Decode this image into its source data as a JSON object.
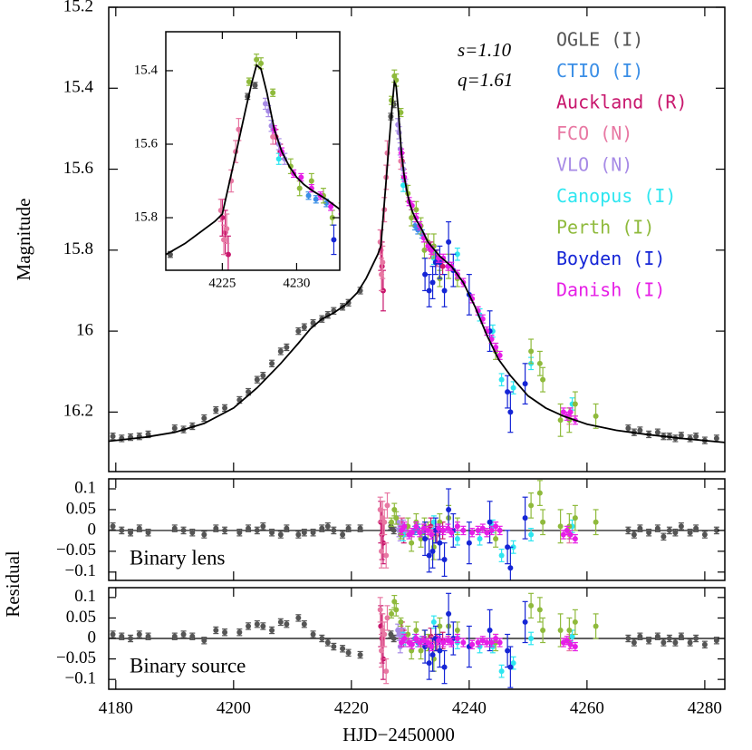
{
  "chart_data": [
    {
      "type": "scatter",
      "ylabel": "Magnitude",
      "xlim": [
        4178.8,
        4283.4
      ],
      "ylim": [
        15.2,
        16.347
      ],
      "y_inverted": true,
      "xticks": [
        4180,
        4200,
        4220,
        4240,
        4260,
        4280
      ],
      "yticks": [
        15.2,
        15.4,
        15.6,
        15.8,
        16,
        16.2
      ],
      "annotations": [
        "s=1.10",
        "q=1.61"
      ],
      "series": [
        {
          "name": "OGLE (I)",
          "color": "#555555",
          "x": [
            4179.5,
            4181,
            4182.5,
            4184,
            4185.5,
            4190,
            4191.5,
            4193,
            4195,
            4197,
            4198.5,
            4201,
            4202.5,
            4204,
            4205,
            4206.5,
            4208,
            4209,
            4211,
            4212,
            4213.5,
            4215,
            4216,
            4217,
            4218.5,
            4219.5,
            4221.5,
            4226.7,
            4227.2,
            4267,
            4268,
            4269,
            4270.5,
            4272,
            4273,
            4274,
            4275,
            4276,
            4277.5,
            4278.5,
            4280,
            4282
          ],
          "values": [
            16.26,
            16.265,
            16.262,
            16.26,
            16.255,
            16.24,
            16.243,
            16.235,
            16.215,
            16.195,
            16.19,
            16.17,
            16.15,
            16.12,
            16.11,
            16.08,
            16.05,
            16.04,
            16.0,
            15.99,
            15.98,
            15.97,
            15.96,
            15.95,
            15.94,
            15.93,
            15.9,
            15.47,
            15.44,
            16.24,
            16.25,
            16.245,
            16.255,
            16.25,
            16.26,
            16.26,
            16.265,
            16.258,
            16.265,
            16.26,
            16.27,
            16.265
          ],
          "errors": [
            0.008,
            0.008,
            0.008,
            0.008,
            0.008,
            0.008,
            0.008,
            0.008,
            0.008,
            0.008,
            0.008,
            0.008,
            0.008,
            0.008,
            0.008,
            0.008,
            0.008,
            0.008,
            0.008,
            0.008,
            0.008,
            0.008,
            0.008,
            0.008,
            0.008,
            0.008,
            0.008,
            0.008,
            0.008,
            0.008,
            0.008,
            0.008,
            0.008,
            0.008,
            0.008,
            0.008,
            0.008,
            0.008,
            0.008,
            0.008,
            0.008,
            0.008
          ]
        },
        {
          "name": "CTIO (I)",
          "color": "#3a8ee6",
          "x": [
            4230.8,
            4231.3,
            4232
          ],
          "values": [
            15.74,
            15.75,
            15.76
          ],
          "errors": [
            0.01,
            0.01,
            0.01
          ]
        },
        {
          "name": "Auckland (R)",
          "color": "#c8176d",
          "x": [
            4225.0,
            4225.2,
            4225.4,
            4228.6,
            4228.9,
            4233.5,
            4234.5,
            4235.5
          ],
          "values": [
            15.8,
            15.84,
            15.9,
            15.58,
            15.62,
            15.8,
            15.82,
            15.84
          ],
          "errors": [
            0.05,
            0.06,
            0.05,
            0.02,
            0.02,
            0.02,
            0.02,
            0.02
          ]
        },
        {
          "name": "FCO (N)",
          "color": "#e878a3",
          "x": [
            4224.9,
            4225.1,
            4225.3,
            4225.6,
            4225.9,
            4226.1,
            4228.4,
            4233.8,
            4234.6,
            4257
          ],
          "values": [
            15.78,
            15.86,
            15.83,
            15.7,
            15.62,
            15.56,
            15.58,
            15.81,
            15.83,
            16.21
          ],
          "errors": [
            0.03,
            0.04,
            0.04,
            0.03,
            0.03,
            0.03,
            0.02,
            0.01,
            0.01,
            0.02
          ]
        },
        {
          "name": "VLO (N)",
          "color": "#a78be6",
          "x": [
            4227.9,
            4228.1,
            4228.3,
            4228.8,
            4229.2
          ],
          "values": [
            15.49,
            15.51,
            15.55,
            15.6,
            15.64
          ],
          "errors": [
            0.015,
            0.015,
            0.015,
            0.015,
            0.015
          ]
        },
        {
          "name": "Canopus (I)",
          "color": "#2ee6f0",
          "x": [
            4228.8,
            4234,
            4238,
            4241.8,
            4244,
            4245.5,
            4247.5,
            4250.5,
            4257.5
          ],
          "values": [
            15.64,
            15.82,
            15.81,
            15.96,
            16.0,
            16.12,
            16.14,
            16.08,
            16.18
          ],
          "errors": [
            0.015,
            0.015,
            0.015,
            0.015,
            0.015,
            0.015,
            0.015,
            0.015,
            0.015
          ]
        },
        {
          "name": "Perth (I)",
          "color": "#8fba3c",
          "x": [
            4226.8,
            4227.3,
            4227.6,
            4228.4,
            4229.6,
            4230.2,
            4231,
            4231.8,
            4232.4,
            4233,
            4234,
            4235,
            4236.5,
            4238,
            4244.5,
            4250.5,
            4252,
            4252.5,
            4255.5,
            4257,
            4258,
            4261.5
          ],
          "values": [
            15.43,
            15.37,
            15.38,
            15.46,
            15.66,
            15.72,
            15.7,
            15.74,
            15.8,
            15.78,
            15.79,
            15.87,
            15.84,
            15.87,
            16.05,
            16.05,
            16.08,
            16.12,
            16.22,
            16.22,
            16.18,
            16.21
          ],
          "errors": [
            0.01,
            0.015,
            0.015,
            0.01,
            0.02,
            0.02,
            0.02,
            0.02,
            0.02,
            0.02,
            0.03,
            0.02,
            0.03,
            0.02,
            0.02,
            0.03,
            0.03,
            0.03,
            0.04,
            0.03,
            0.03,
            0.03
          ]
        },
        {
          "name": "Boyden (I)",
          "color": "#1525d6",
          "x": [
            4232.5,
            4233.2,
            4233.8,
            4234.3,
            4235,
            4235.8,
            4236.5,
            4237.3,
            4240,
            4243.5,
            4246.5,
            4247,
            4249.5
          ],
          "values": [
            15.86,
            15.9,
            15.88,
            15.83,
            15.83,
            15.9,
            15.78,
            15.85,
            15.91,
            16.0,
            16.15,
            16.2,
            16.13
          ],
          "errors": [
            0.04,
            0.04,
            0.04,
            0.03,
            0.04,
            0.04,
            0.05,
            0.04,
            0.05,
            0.05,
            0.04,
            0.05,
            0.05
          ]
        },
        {
          "name": "Danish (I)",
          "color": "#e61ee6",
          "x": [
            4228.5,
            4229,
            4229.8,
            4230.3,
            4231,
            4231.6,
            4232.3,
            4233,
            4233.6,
            4234.8,
            4235.6,
            4236.4,
            4237,
            4238,
            4239,
            4240.5,
            4241.5,
            4242.3,
            4243,
            4243.8,
            4244.5,
            4245.2,
            4256,
            4256.6,
            4257.2,
            4258
          ],
          "values": [
            15.56,
            15.62,
            15.68,
            15.69,
            15.72,
            15.74,
            15.77,
            15.79,
            15.8,
            15.82,
            15.82,
            15.84,
            15.84,
            15.86,
            15.88,
            15.92,
            15.95,
            15.97,
            16.0,
            16.02,
            16.04,
            16.06,
            16.2,
            16.21,
            16.2,
            16.22
          ],
          "errors": [
            0.01,
            0.01,
            0.01,
            0.01,
            0.01,
            0.01,
            0.01,
            0.01,
            0.01,
            0.01,
            0.01,
            0.01,
            0.01,
            0.01,
            0.01,
            0.01,
            0.01,
            0.01,
            0.01,
            0.01,
            0.01,
            0.01,
            0.01,
            0.01,
            0.01,
            0.01
          ]
        }
      ],
      "model": {
        "color": "#000000",
        "x": [
          4178.8,
          4185,
          4190,
          4195,
          4200,
          4204,
          4208,
          4211,
          4213,
          4215,
          4217,
          4219,
          4221,
          4222.5,
          4223.5,
          4224.5,
          4225,
          4226,
          4226.6,
          4227,
          4227.3,
          4227.6,
          4228,
          4228.5,
          4229,
          4229.5,
          4230,
          4230.5,
          4231,
          4232,
          4233,
          4235,
          4237,
          4239,
          4241,
          4243,
          4245,
          4247,
          4250,
          4253,
          4256,
          4260,
          4265,
          4270,
          4276,
          4283.4
        ],
        "values": [
          16.272,
          16.262,
          16.25,
          16.228,
          16.19,
          16.14,
          16.08,
          16.03,
          15.995,
          15.97,
          15.955,
          15.935,
          15.905,
          15.87,
          15.84,
          15.81,
          15.79,
          15.61,
          15.5,
          15.43,
          15.385,
          15.395,
          15.46,
          15.56,
          15.62,
          15.66,
          15.69,
          15.71,
          15.725,
          15.75,
          15.78,
          15.815,
          15.84,
          15.88,
          15.94,
          16.01,
          16.07,
          16.11,
          16.16,
          16.19,
          16.21,
          16.23,
          16.245,
          16.255,
          16.265,
          16.275
        ]
      },
      "inset": {
        "xlim": [
          4221.2,
          4232.9
        ],
        "ylim": [
          15.294,
          15.943
        ],
        "xticks": [
          4225,
          4230
        ],
        "yticks": [
          15.4,
          15.6,
          15.8
        ]
      }
    },
    {
      "type": "scatter",
      "annotation": "Binary lens",
      "ylim": [
        -0.12,
        0.124
      ],
      "yticks": [
        0.1,
        0.05,
        0,
        {
          "value": -0.05,
          "label": "−0.05"
        },
        {
          "value": -0.1,
          "label": "−0.1"
        }
      ],
      "residuals": [
        [
          0.01,
          0,
          -0.005,
          0.005,
          -0.005,
          0.005,
          0,
          -0.005,
          -0.01,
          0.005,
          0,
          -0.005,
          0.005,
          0,
          0.01,
          -0.005,
          -0.01,
          0.005,
          -0.01,
          -0.005,
          -0.005,
          0.005,
          0.01,
          0,
          -0.01,
          0.005,
          0.005,
          0.01,
          0,
          0,
          -0.01,
          0.005,
          -0.005,
          0.005,
          -0.015,
          0,
          -0.005,
          0.01,
          -0.005,
          0.005,
          -0.01,
          0
        ],
        [
          0,
          0.005,
          -0.005
        ],
        [
          0.02,
          -0.01,
          -0.03,
          0.01,
          -0.01,
          0.01,
          -0.01,
          0
        ],
        [
          0.05,
          -0.05,
          0.03,
          0.02,
          -0.06,
          0.06,
          0.01,
          0,
          -0.005,
          -0.01
        ],
        [
          0.02,
          0,
          -0.01,
          0.01,
          0
        ],
        [
          -0.01,
          0.02,
          -0.02,
          -0.02,
          0.01,
          -0.06,
          -0.04,
          -0.01,
          0.01
        ],
        [
          0.02,
          0.05,
          0.03,
          -0.01,
          0.01,
          -0.03,
          0.02,
          -0.02,
          0.01,
          0,
          -0.04,
          0.02,
          0.03,
          0.01,
          -0.02,
          0.06,
          0.09,
          0.02,
          0.01,
          0.01,
          0.03,
          0.02
        ],
        [
          -0.02,
          -0.06,
          -0.05,
          0,
          -0.03,
          -0.07,
          0.05,
          0,
          -0.03,
          0.02,
          -0.04,
          -0.09,
          0.03
        ],
        [
          0,
          0.01,
          -0.01,
          -0.005,
          0.01,
          -0.005,
          0.005,
          0,
          -0.01,
          0.005,
          0,
          0.005,
          -0.005,
          0.01,
          0,
          -0.005,
          0,
          0.005,
          -0.005,
          0,
          0.01,
          0,
          -0.01,
          0,
          -0.01,
          -0.02
        ]
      ]
    },
    {
      "type": "scatter",
      "annotation": "Binary source",
      "ylabel": "Residual",
      "xlabel": "HJD−2450000",
      "ylim": [
        -0.124,
        0.124
      ],
      "yticks": [
        0.1,
        0.05,
        0,
        {
          "value": -0.05,
          "label": "−0.05"
        },
        {
          "value": -0.1,
          "label": "−0.1"
        }
      ],
      "residuals": [
        [
          0.01,
          0.005,
          0,
          0.01,
          0.005,
          0.005,
          0.01,
          0.005,
          -0.005,
          0.02,
          0.015,
          0.015,
          0.03,
          0.035,
          0.03,
          0.02,
          0.04,
          0.035,
          0.05,
          0.035,
          0.01,
          0,
          -0.01,
          -0.02,
          -0.025,
          -0.035,
          -0.04,
          0.01,
          0,
          0,
          -0.01,
          0.005,
          -0.005,
          0.005,
          -0.01,
          0,
          -0.01,
          0.005,
          -0.01,
          0,
          -0.015,
          -0.005
        ],
        [
          0,
          -0.01,
          -0.005
        ],
        [
          0.03,
          0,
          -0.05,
          0.02,
          0,
          0.005,
          -0.01,
          -0.005
        ],
        [
          0.07,
          -0.03,
          0.02,
          0.01,
          -0.08,
          0.05,
          0.02,
          -0.005,
          -0.01,
          -0.01
        ],
        [
          0.02,
          0.01,
          -0.02,
          0.01,
          -0.005
        ],
        [
          0,
          0.04,
          -0.01,
          -0.02,
          -0.02,
          -0.08,
          -0.06,
          0,
          0.005
        ],
        [
          0.06,
          0.09,
          0.07,
          0.04,
          0.01,
          -0.03,
          0.02,
          -0.03,
          0,
          -0.01,
          -0.05,
          0.03,
          0.03,
          0.02,
          -0.01,
          0.08,
          0.07,
          0.02,
          0.02,
          0.02,
          0.04,
          0.03
        ],
        [
          -0.02,
          -0.06,
          -0.04,
          0,
          -0.03,
          -0.07,
          0.06,
          0,
          -0.02,
          0.02,
          -0.03,
          -0.07,
          0.04
        ],
        [
          -0.01,
          0,
          -0.01,
          -0.015,
          0,
          -0.01,
          -0.005,
          -0.01,
          -0.02,
          -0.005,
          -0.01,
          -0.005,
          -0.01,
          0,
          -0.01,
          -0.015,
          -0.01,
          -0.005,
          -0.01,
          -0.01,
          0,
          -0.01,
          -0.01,
          -0.005,
          -0.015,
          -0.02
        ]
      ]
    }
  ]
}
